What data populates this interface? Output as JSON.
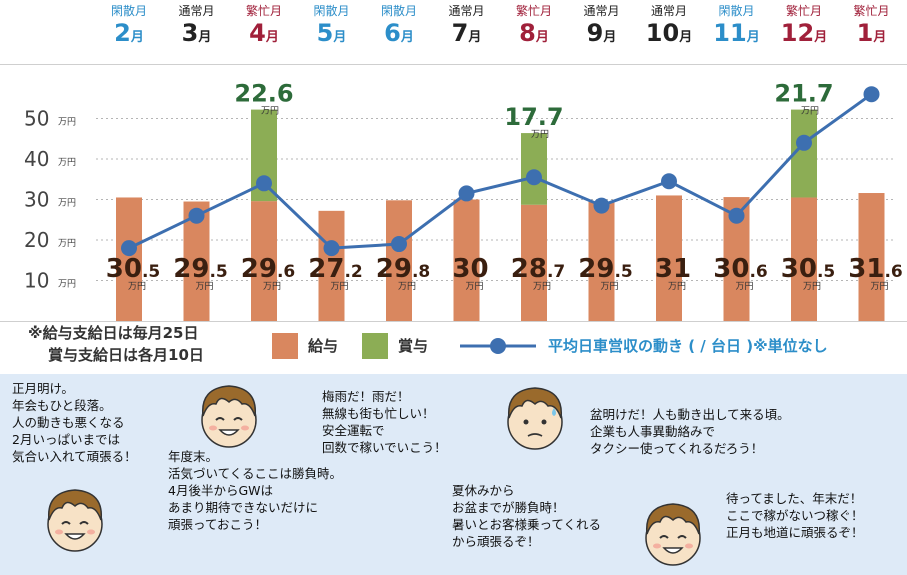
{
  "months": [
    {
      "tag": "閑散月",
      "num": "2",
      "suffix": "月",
      "type": "quiet"
    },
    {
      "tag": "通常月",
      "num": "3",
      "suffix": "月",
      "type": "normal"
    },
    {
      "tag": "繁忙月",
      "num": "4",
      "suffix": "月",
      "type": "busy"
    },
    {
      "tag": "閑散月",
      "num": "5",
      "suffix": "月",
      "type": "quiet"
    },
    {
      "tag": "閑散月",
      "num": "6",
      "suffix": "月",
      "type": "quiet"
    },
    {
      "tag": "通常月",
      "num": "7",
      "suffix": "月",
      "type": "normal"
    },
    {
      "tag": "繁忙月",
      "num": "8",
      "suffix": "月",
      "type": "busy"
    },
    {
      "tag": "通常月",
      "num": "9",
      "suffix": "月",
      "type": "normal"
    },
    {
      "tag": "通常月",
      "num": "10",
      "suffix": "月",
      "type": "normal"
    },
    {
      "tag": "閑散月",
      "num": "11",
      "suffix": "月",
      "type": "quiet"
    },
    {
      "tag": "繁忙月",
      "num": "12",
      "suffix": "月",
      "type": "busy"
    },
    {
      "tag": "繁忙月",
      "num": "1",
      "suffix": "月",
      "type": "busy"
    }
  ],
  "colors": {
    "quiet": "#2c8ec9",
    "normal": "#222222",
    "busy": "#a0203a",
    "salary": "#d9875f",
    "bonus": "#8cad55",
    "line": "#3d6fb0",
    "text": "#333333",
    "bonus_label": "#2d6b3a"
  },
  "chart_data": {
    "type": "bar",
    "categories": [
      "2月",
      "3月",
      "4月",
      "5月",
      "6月",
      "7月",
      "8月",
      "9月",
      "10月",
      "11月",
      "12月",
      "1月"
    ],
    "series": [
      {
        "name": "給与",
        "values": [
          30.5,
          29.5,
          29.6,
          27.2,
          29.8,
          30,
          28.7,
          29.5,
          31,
          30.6,
          30.5,
          31.6
        ]
      },
      {
        "name": "賞与",
        "values": [
          0,
          0,
          22.6,
          0,
          0,
          0,
          17.7,
          0,
          0,
          0,
          21.7,
          0
        ]
      },
      {
        "name": "平均日車営収の動き ( / 台日 )※単位なし",
        "type": "line",
        "values": [
          18,
          26,
          34,
          18,
          19,
          31.5,
          35.5,
          28.5,
          34.5,
          26,
          44,
          56
        ]
      }
    ],
    "salary_labels": [
      {
        "main": "30",
        "dec": ".5"
      },
      {
        "main": "29",
        "dec": ".5"
      },
      {
        "main": "29",
        "dec": ".6"
      },
      {
        "main": "27",
        "dec": ".2"
      },
      {
        "main": "29",
        "dec": ".8"
      },
      {
        "main": "30",
        "dec": ""
      },
      {
        "main": "28",
        "dec": ".7"
      },
      {
        "main": "29",
        "dec": ".5"
      },
      {
        "main": "31",
        "dec": ""
      },
      {
        "main": "30",
        "dec": ".6"
      },
      {
        "main": "30",
        "dec": ".5"
      },
      {
        "main": "31",
        "dec": ".6"
      }
    ],
    "bonus_labels": [
      {
        "index": 2,
        "text": "22.6"
      },
      {
        "index": 6,
        "text": "17.7"
      },
      {
        "index": 10,
        "text": "21.7"
      }
    ],
    "unit": "万円",
    "yticks": [
      10,
      20,
      30,
      40,
      50
    ],
    "ylim": [
      0,
      60
    ],
    "grid": true
  },
  "legend": {
    "note1": "※給与支給日は毎月25日",
    "note2": "賞与支給日は各月10日",
    "salary": "給与",
    "bonus": "賞与",
    "line": "平均日車営収の動き ( / 台日 )※単位なし"
  },
  "messages": [
    {
      "id": "msg-january",
      "text": "正月明け。\n年会もひと段落。\n人の動きも悪くなる\n2月いっぱいまでは\n気合い入れて頑張る！"
    },
    {
      "id": "msg-yearend",
      "text": "年度末。\n活気づいてくるここは勝負時。\n4月後半からGWは\nあまり期待できないだけに\n頑張っておこう！"
    },
    {
      "id": "msg-rainy",
      "text": "梅雨だ！雨だ！\n無線も街も忙しい！\n安全運転で\n回数で稼いでいこう！"
    },
    {
      "id": "msg-summer",
      "text": "夏休みから\nお盆までが勝負時！\n暑いとお客様乗ってくれる\nから頑張るぞ！"
    },
    {
      "id": "msg-autumn",
      "text": "盆明けだ！人も動き出して来る頃。\n企業も人事異動絡みで\nタクシー使ってくれるだろう！"
    },
    {
      "id": "msg-december",
      "text": "待ってました、年末だ！\nここで稼がないつ稼ぐ！\n正月も地道に頑張るぞ！"
    }
  ]
}
